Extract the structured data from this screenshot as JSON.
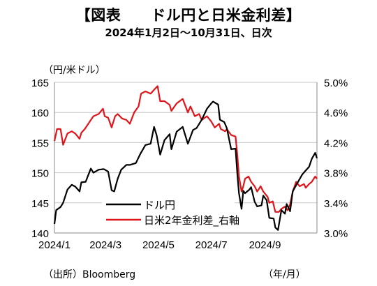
{
  "title": "【図表　　ドル円と日米金利差】",
  "subtitle": "2024年1月2日～10月31日、日次",
  "left_unit": "（円/米ドル）",
  "source": "（出所）Bloomberg",
  "x_unit": "（年/月）",
  "colors": {
    "usdjpy": "#000000",
    "spread": "#e0151b",
    "grid": "#c8c8c8",
    "axis": "#888888"
  },
  "chart_data": {
    "type": "line",
    "x_range": [
      "2024-01-02",
      "2024-10-31"
    ],
    "x_ticks": [
      "2024/1",
      "2024/3",
      "2024/5",
      "2024/7",
      "2024/9"
    ],
    "y_left": {
      "range": [
        140,
        165
      ],
      "ticks": [
        140,
        145,
        150,
        155,
        160,
        165
      ]
    },
    "y_right": {
      "range": [
        3.0,
        5.0
      ],
      "ticks": [
        "3.0%",
        "3.4%",
        "3.8%",
        "4.2%",
        "4.6%",
        "5.0%"
      ],
      "tick_values": [
        3.0,
        3.4,
        3.8,
        4.2,
        4.6,
        5.0
      ]
    },
    "grid": "horizontal",
    "legend": "bottom-center",
    "series": [
      {
        "name": "ドル円",
        "axis": "left",
        "color": "#000000",
        "points": [
          [
            "2024-01-02",
            141.5
          ],
          [
            "2024-01-04",
            143.8
          ],
          [
            "2024-01-09",
            144.3
          ],
          [
            "2024-01-12",
            145.0
          ],
          [
            "2024-01-17",
            147.2
          ],
          [
            "2024-01-22",
            148.0
          ],
          [
            "2024-01-26",
            147.7
          ],
          [
            "2024-01-31",
            146.9
          ],
          [
            "2024-02-02",
            148.4
          ],
          [
            "2024-02-07",
            148.5
          ],
          [
            "2024-02-13",
            150.7
          ],
          [
            "2024-02-16",
            150.0
          ],
          [
            "2024-02-22",
            150.5
          ],
          [
            "2024-02-28",
            150.6
          ],
          [
            "2024-03-04",
            150.2
          ],
          [
            "2024-03-08",
            147.1
          ],
          [
            "2024-03-11",
            146.9
          ],
          [
            "2024-03-15",
            149.0
          ],
          [
            "2024-03-19",
            150.5
          ],
          [
            "2024-03-25",
            151.3
          ],
          [
            "2024-03-29",
            151.3
          ],
          [
            "2024-04-05",
            151.6
          ],
          [
            "2024-04-10",
            153.1
          ],
          [
            "2024-04-16",
            154.6
          ],
          [
            "2024-04-22",
            154.8
          ],
          [
            "2024-04-26",
            157.6
          ],
          [
            "2024-04-29",
            156.2
          ],
          [
            "2024-05-03",
            153.0
          ],
          [
            "2024-05-08",
            155.4
          ],
          [
            "2024-05-14",
            156.4
          ],
          [
            "2024-05-16",
            153.9
          ],
          [
            "2024-05-22",
            156.8
          ],
          [
            "2024-05-29",
            157.6
          ],
          [
            "2024-06-04",
            154.8
          ],
          [
            "2024-06-10",
            157.1
          ],
          [
            "2024-06-14",
            157.4
          ],
          [
            "2024-06-20",
            158.8
          ],
          [
            "2024-06-26",
            160.6
          ],
          [
            "2024-07-01",
            161.5
          ],
          [
            "2024-07-03",
            161.8
          ],
          [
            "2024-07-09",
            161.3
          ],
          [
            "2024-07-11",
            158.8
          ],
          [
            "2024-07-16",
            158.4
          ],
          [
            "2024-07-19",
            157.4
          ],
          [
            "2024-07-24",
            153.9
          ],
          [
            "2024-07-29",
            154.0
          ],
          [
            "2024-07-31",
            150.0
          ],
          [
            "2024-08-02",
            146.6
          ],
          [
            "2024-08-05",
            144.0
          ],
          [
            "2024-08-07",
            147.0
          ],
          [
            "2024-08-09",
            146.6
          ],
          [
            "2024-08-14",
            147.2
          ],
          [
            "2024-08-16",
            147.6
          ],
          [
            "2024-08-20",
            145.2
          ],
          [
            "2024-08-23",
            144.4
          ],
          [
            "2024-08-28",
            144.6
          ],
          [
            "2024-08-30",
            146.2
          ],
          [
            "2024-09-03",
            145.4
          ],
          [
            "2024-09-06",
            142.5
          ],
          [
            "2024-09-11",
            142.4
          ],
          [
            "2024-09-13",
            140.9
          ],
          [
            "2024-09-16",
            140.5
          ],
          [
            "2024-09-20",
            143.8
          ],
          [
            "2024-09-24",
            143.2
          ],
          [
            "2024-09-26",
            144.8
          ],
          [
            "2024-09-30",
            143.6
          ],
          [
            "2024-10-03",
            146.9
          ],
          [
            "2024-10-08",
            148.2
          ],
          [
            "2024-10-14",
            149.7
          ],
          [
            "2024-10-17",
            150.2
          ],
          [
            "2024-10-22",
            151.0
          ],
          [
            "2024-10-25",
            152.3
          ],
          [
            "2024-10-29",
            153.3
          ],
          [
            "2024-10-31",
            152.4
          ]
        ]
      },
      {
        "name": "日米2年金利差_右軸",
        "axis": "right",
        "color": "#e0151b",
        "points": [
          [
            "2024-01-02",
            4.22
          ],
          [
            "2024-01-05",
            4.38
          ],
          [
            "2024-01-09",
            4.38
          ],
          [
            "2024-01-12",
            4.17
          ],
          [
            "2024-01-17",
            4.32
          ],
          [
            "2024-01-22",
            4.35
          ],
          [
            "2024-01-26",
            4.32
          ],
          [
            "2024-01-31",
            4.25
          ],
          [
            "2024-02-02",
            4.33
          ],
          [
            "2024-02-06",
            4.38
          ],
          [
            "2024-02-13",
            4.5
          ],
          [
            "2024-02-16",
            4.55
          ],
          [
            "2024-02-22",
            4.58
          ],
          [
            "2024-02-27",
            4.65
          ],
          [
            "2024-02-29",
            4.55
          ],
          [
            "2024-03-04",
            4.53
          ],
          [
            "2024-03-08",
            4.4
          ],
          [
            "2024-03-12",
            4.55
          ],
          [
            "2024-03-15",
            4.58
          ],
          [
            "2024-03-20",
            4.52
          ],
          [
            "2024-03-25",
            4.5
          ],
          [
            "2024-03-29",
            4.45
          ],
          [
            "2024-04-03",
            4.6
          ],
          [
            "2024-04-08",
            4.68
          ],
          [
            "2024-04-11",
            4.85
          ],
          [
            "2024-04-16",
            4.88
          ],
          [
            "2024-04-22",
            4.85
          ],
          [
            "2024-04-26",
            4.9
          ],
          [
            "2024-04-30",
            4.95
          ],
          [
            "2024-05-03",
            4.75
          ],
          [
            "2024-05-08",
            4.75
          ],
          [
            "2024-05-14",
            4.7
          ],
          [
            "2024-05-16",
            4.62
          ],
          [
            "2024-05-22",
            4.72
          ],
          [
            "2024-05-29",
            4.78
          ],
          [
            "2024-06-04",
            4.6
          ],
          [
            "2024-06-07",
            4.68
          ],
          [
            "2024-06-12",
            4.55
          ],
          [
            "2024-06-17",
            4.58
          ],
          [
            "2024-06-20",
            4.5
          ],
          [
            "2024-06-26",
            4.55
          ],
          [
            "2024-07-01",
            4.48
          ],
          [
            "2024-07-05",
            4.4
          ],
          [
            "2024-07-10",
            4.45
          ],
          [
            "2024-07-12",
            4.38
          ],
          [
            "2024-07-17",
            4.35
          ],
          [
            "2024-07-19",
            4.38
          ],
          [
            "2024-07-24",
            4.3
          ],
          [
            "2024-07-29",
            4.28
          ],
          [
            "2024-07-31",
            4.05
          ],
          [
            "2024-08-02",
            3.75
          ],
          [
            "2024-08-05",
            3.55
          ],
          [
            "2024-08-07",
            3.62
          ],
          [
            "2024-08-09",
            3.72
          ],
          [
            "2024-08-13",
            3.75
          ],
          [
            "2024-08-16",
            3.68
          ],
          [
            "2024-08-20",
            3.62
          ],
          [
            "2024-08-23",
            3.55
          ],
          [
            "2024-08-27",
            3.62
          ],
          [
            "2024-08-30",
            3.55
          ],
          [
            "2024-09-04",
            3.48
          ],
          [
            "2024-09-06",
            3.4
          ],
          [
            "2024-09-10",
            3.42
          ],
          [
            "2024-09-13",
            3.28
          ],
          [
            "2024-09-17",
            3.28
          ],
          [
            "2024-09-20",
            3.32
          ],
          [
            "2024-09-24",
            3.35
          ],
          [
            "2024-09-27",
            3.3
          ],
          [
            "2024-09-30",
            3.38
          ],
          [
            "2024-10-03",
            3.55
          ],
          [
            "2024-10-07",
            3.68
          ],
          [
            "2024-10-11",
            3.62
          ],
          [
            "2024-10-16",
            3.65
          ],
          [
            "2024-10-18",
            3.6
          ],
          [
            "2024-10-22",
            3.65
          ],
          [
            "2024-10-25",
            3.68
          ],
          [
            "2024-10-29",
            3.75
          ],
          [
            "2024-10-31",
            3.72
          ]
        ]
      }
    ]
  }
}
